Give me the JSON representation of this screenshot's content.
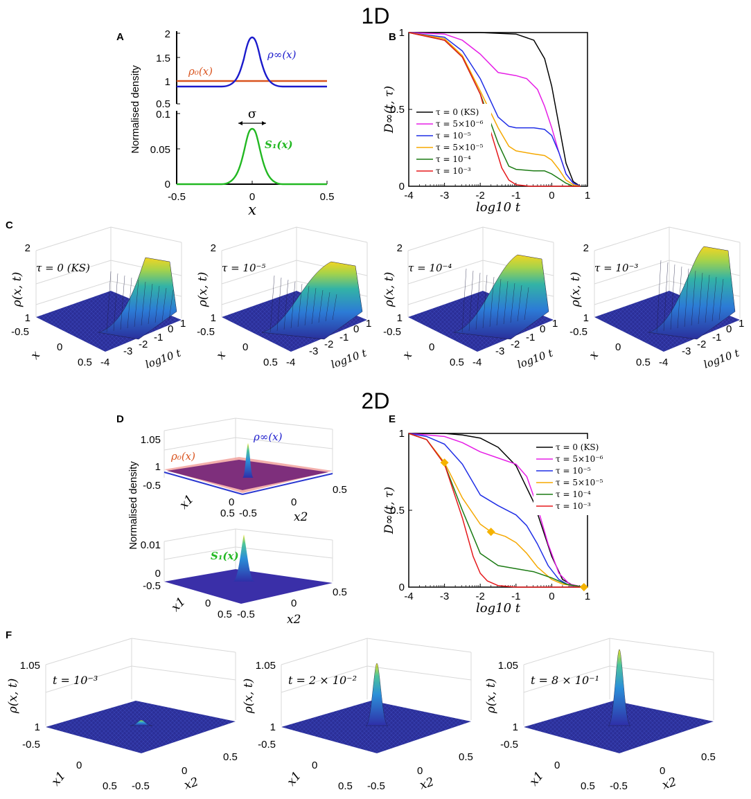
{
  "figure": {
    "section_1d": "1D",
    "section_2d": "2D",
    "panel_letters": [
      "A",
      "B",
      "C",
      "D",
      "E",
      "F"
    ]
  },
  "colors": {
    "tau0": "#000000",
    "tau5e6": "#e61ee6",
    "tau1e5": "#1f2ee6",
    "tau5e5": "#f5a800",
    "tau1e4": "#1a7a12",
    "tau1e3": "#e5181b",
    "rho0": "#d9531e",
    "rhoinf": "#1a1acc",
    "s1": "#22b822"
  },
  "panelA": {
    "ylabel": "Normalised density",
    "xlabel": "x",
    "top_yticks": [
      "2",
      "1.5",
      "1",
      "0.5"
    ],
    "bottom_yticks": [
      "0.1",
      "0.05",
      "0"
    ],
    "xticks": [
      "-0.5",
      "0",
      "0.5"
    ],
    "rho0_label": "ρ₀(x)",
    "rhoinf_label": "ρ∞(x)",
    "s1_label": "S₁(x)",
    "sigma_label": "σ"
  },
  "chart_data": [
    {
      "id": "B",
      "type": "line",
      "title": "",
      "xlabel": "log10 t",
      "ylabel": "D∞(t, τ)",
      "xlim": [
        -4,
        1
      ],
      "ylim": [
        0,
        1
      ],
      "xticks": [
        "-4",
        "-3",
        "-2",
        "-1",
        "0",
        "1"
      ],
      "yticks": [
        "0",
        "0.5",
        "1"
      ],
      "legend_position": "center-left",
      "series": [
        {
          "name": "τ = 0 (KS)",
          "color_key": "tau0",
          "x": [
            -4,
            -2,
            -1,
            -0.5,
            -0.2,
            0,
            0.2,
            0.4,
            0.6,
            0.8
          ],
          "values": [
            1,
            1,
            0.99,
            0.95,
            0.83,
            0.65,
            0.4,
            0.15,
            0.03,
            0
          ]
        },
        {
          "name": "τ = 5×10⁻⁶",
          "color_key": "tau5e6",
          "x": [
            -4,
            -3,
            -2.5,
            -2,
            -1.5,
            -1,
            -0.7,
            -0.4,
            -0.2,
            0,
            0.2,
            0.4,
            0.6,
            0.8
          ],
          "values": [
            1,
            0.99,
            0.95,
            0.86,
            0.74,
            0.72,
            0.7,
            0.63,
            0.52,
            0.38,
            0.22,
            0.08,
            0.02,
            0
          ]
        },
        {
          "name": "τ = 10⁻⁵",
          "color_key": "tau1e5",
          "x": [
            -4,
            -3,
            -2.5,
            -2,
            -1.5,
            -1.2,
            -1,
            -0.5,
            -0.2,
            0,
            0.2,
            0.4,
            0.6,
            0.8
          ],
          "values": [
            1,
            0.97,
            0.88,
            0.7,
            0.45,
            0.39,
            0.38,
            0.38,
            0.37,
            0.33,
            0.22,
            0.08,
            0.02,
            0
          ]
        },
        {
          "name": "τ = 5×10⁻⁵",
          "color_key": "tau5e5",
          "x": [
            -4,
            -3,
            -2.5,
            -2,
            -1.5,
            -1.2,
            -1,
            -0.5,
            -0.2,
            0,
            0.2,
            0.4,
            0.6,
            0.8
          ],
          "values": [
            1,
            0.96,
            0.85,
            0.62,
            0.38,
            0.26,
            0.23,
            0.21,
            0.2,
            0.17,
            0.11,
            0.04,
            0.01,
            0
          ]
        },
        {
          "name": "τ = 10⁻⁴",
          "color_key": "tau1e4",
          "x": [
            -4,
            -3,
            -2.5,
            -2,
            -1.5,
            -1.2,
            -1,
            -0.5,
            -0.2,
            0,
            0.2,
            0.4,
            0.6,
            0.8
          ],
          "values": [
            1,
            0.95,
            0.84,
            0.6,
            0.28,
            0.13,
            0.11,
            0.1,
            0.1,
            0.08,
            0.05,
            0.02,
            0,
            0
          ]
        },
        {
          "name": "τ = 10⁻³",
          "color_key": "tau1e3",
          "x": [
            -4,
            -3,
            -2.5,
            -2,
            -1.7,
            -1.4,
            -1.2,
            -1,
            -0.6,
            0,
            0.8
          ],
          "values": [
            1,
            0.95,
            0.84,
            0.6,
            0.35,
            0.12,
            0.04,
            0.01,
            0,
            0,
            0
          ]
        }
      ]
    },
    {
      "id": "E",
      "type": "line",
      "title": "",
      "xlabel": "log10 t",
      "ylabel": "D∞(t, τ)",
      "xlim": [
        -4,
        1
      ],
      "ylim": [
        0,
        1
      ],
      "xticks": [
        "-4",
        "-3",
        "-2",
        "-1",
        "0",
        "1"
      ],
      "yticks": [
        "0",
        "0.5",
        "1"
      ],
      "legend_position": "top-right",
      "series": [
        {
          "name": "τ = 0 (KS)",
          "color_key": "tau0",
          "x": [
            -4,
            -3,
            -2.5,
            -2,
            -1.5,
            -1,
            -0.5,
            0,
            0.3,
            0.6,
            0.9
          ],
          "values": [
            1,
            1,
            0.99,
            0.97,
            0.91,
            0.79,
            0.55,
            0.2,
            0.05,
            0.01,
            0
          ]
        },
        {
          "name": "τ = 5×10⁻⁶",
          "color_key": "tau5e6",
          "x": [
            -4,
            -3,
            -2.5,
            -2,
            -1.5,
            -1,
            -0.7,
            -0.4,
            -0.1,
            0.2,
            0.5,
            0.9
          ],
          "values": [
            1,
            0.98,
            0.94,
            0.88,
            0.84,
            0.8,
            0.72,
            0.52,
            0.28,
            0.09,
            0.02,
            0
          ]
        },
        {
          "name": "τ = 10⁻⁵",
          "color_key": "tau1e5",
          "x": [
            -4,
            -3.5,
            -3,
            -2.5,
            -2,
            -1.5,
            -1,
            -0.7,
            -0.4,
            -0.1,
            0.2,
            0.5,
            0.9
          ],
          "values": [
            1,
            0.98,
            0.93,
            0.8,
            0.6,
            0.53,
            0.47,
            0.4,
            0.28,
            0.14,
            0.05,
            0.01,
            0
          ]
        },
        {
          "name": "τ = 5×10⁻⁵",
          "color_key": "tau5e5",
          "x": [
            -4,
            -3.5,
            -3,
            -2.5,
            -2,
            -1.7,
            -1.3,
            -1,
            -0.7,
            -0.4,
            0,
            0.3,
            0.6,
            0.9
          ],
          "values": [
            1,
            0.96,
            0.81,
            0.58,
            0.41,
            0.36,
            0.33,
            0.29,
            0.22,
            0.13,
            0.05,
            0.02,
            0.01,
            0
          ]
        },
        {
          "name": "τ = 10⁻⁴",
          "color_key": "tau1e4",
          "x": [
            -4,
            -3.5,
            -3,
            -2.5,
            -2,
            -1.5,
            -1,
            -0.5,
            0,
            0.4,
            0.9
          ],
          "values": [
            1,
            0.96,
            0.8,
            0.5,
            0.22,
            0.14,
            0.12,
            0.1,
            0.06,
            0.02,
            0
          ]
        },
        {
          "name": "τ = 10⁻³",
          "color_key": "tau1e3",
          "x": [
            -4,
            -3.5,
            -3,
            -2.5,
            -2.2,
            -2,
            -1.8,
            -1.5,
            -1,
            0,
            0.9
          ],
          "values": [
            1,
            0.96,
            0.8,
            0.45,
            0.2,
            0.09,
            0.04,
            0.01,
            0,
            0,
            0
          ]
        }
      ],
      "markers": [
        {
          "series": "τ = 5×10⁻⁵",
          "x": -3,
          "y": 0.81
        },
        {
          "series": "τ = 5×10⁻⁵",
          "x": -1.7,
          "y": 0.36
        },
        {
          "series": "τ = 5×10⁻⁵",
          "x": 0.9,
          "y": 0
        }
      ]
    }
  ],
  "panelC": {
    "zlabel": "ρ(x, t)",
    "xlabel": "x",
    "tlabel": "log10 t",
    "zticks": [
      "2",
      "1"
    ],
    "xticks": [
      "-0.5",
      "0",
      "0.5"
    ],
    "tticks": [
      "-4",
      "-3",
      "-2",
      "-1",
      "0",
      "1"
    ],
    "subplots": [
      {
        "label": "τ = 0 (KS)"
      },
      {
        "label": "τ = 10⁻⁵"
      },
      {
        "label": "τ = 10⁻⁴"
      },
      {
        "label": "τ = 10⁻³"
      }
    ]
  },
  "panelD": {
    "ylabel": "Normalised density",
    "top_zticks": [
      "1.05",
      "1",
      "-0.5"
    ],
    "bottom_zticks": [
      "0.01",
      "0",
      "-0.5"
    ],
    "x1label": "x1",
    "x2label": "x2",
    "x1ticks": [
      "0",
      "0.5"
    ],
    "x2ticks": [
      "-0.5",
      "0",
      "0.5"
    ],
    "rho0_label": "ρ₀(x)",
    "rhoinf_label": "ρ∞(x)",
    "s1_label": "S₁(x)"
  },
  "panelF": {
    "zlabel": "ρ(x, t)",
    "x1label": "x1",
    "x2label": "x2",
    "zticks_first": [
      "1.05",
      "1",
      "-0.5"
    ],
    "zticks_other": [
      "1.05",
      "1",
      "-0.5"
    ],
    "x1ticks": [
      "0",
      "0.5"
    ],
    "x2ticks": [
      "-0.5",
      "0",
      "0.5"
    ],
    "subplots": [
      {
        "label": "t = 10⁻³"
      },
      {
        "label": "t = 2 × 10⁻²"
      },
      {
        "label": "t = 8 × 10⁻¹"
      }
    ]
  }
}
